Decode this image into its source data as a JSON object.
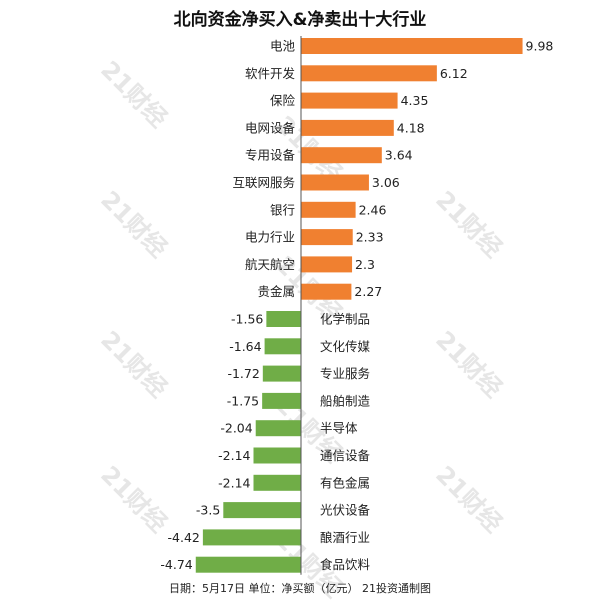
{
  "title": "北向资金净买入&净卖出十大行业",
  "footer": "日期：5月17日 单位：净买额（亿元） 21投资通制图",
  "watermark": "21财经",
  "colors": {
    "positive": "#f08030",
    "negative": "#70ad47",
    "axis": "#555555",
    "text": "#222222"
  },
  "chart_data": {
    "type": "bar",
    "orientation": "horizontal",
    "title": "北向资金净买入&净卖出十大行业",
    "categories": [
      "电池",
      "软件开发",
      "保险",
      "电网设备",
      "专用设备",
      "互联网服务",
      "银行",
      "电力行业",
      "航天航空",
      "贵金属",
      "化学制品",
      "文化传媒",
      "专业服务",
      "船舶制造",
      "半导体",
      "通信设备",
      "有色金属",
      "光伏设备",
      "酿酒行业",
      "食品饮料"
    ],
    "values": [
      9.98,
      6.12,
      4.35,
      4.18,
      3.64,
      3.06,
      2.46,
      2.33,
      2.3,
      2.27,
      -1.56,
      -1.64,
      -1.72,
      -1.75,
      -2.04,
      -2.14,
      -2.14,
      -3.5,
      -4.42,
      -4.74
    ],
    "value_labels": [
      "9.98",
      "6.12",
      "4.35",
      "4.18",
      "3.64",
      "3.06",
      "2.46",
      "2.33",
      "2.3",
      "2.27",
      "-1.56",
      "-1.64",
      "-1.72",
      "-1.75",
      "-2.04",
      "-2.14",
      "-2.14",
      "-3.5",
      "-4.42",
      "-4.74"
    ],
    "xlim": [
      -4.74,
      9.98
    ],
    "grid": false,
    "legend": "none"
  }
}
